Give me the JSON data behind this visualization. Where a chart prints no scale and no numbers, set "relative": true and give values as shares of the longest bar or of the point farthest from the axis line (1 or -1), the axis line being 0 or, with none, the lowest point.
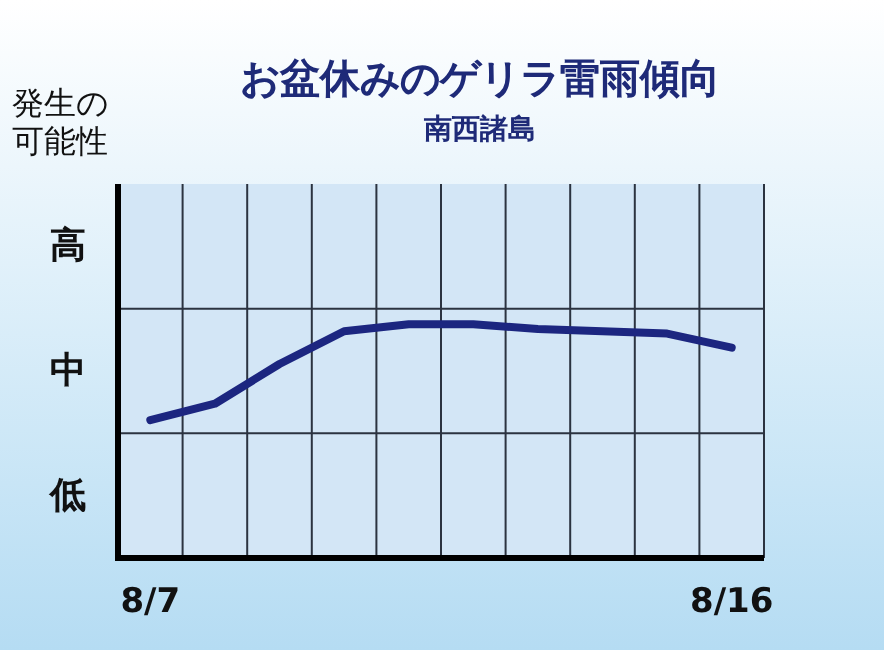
{
  "chart_data": {
    "type": "line",
    "title": "お盆休みのゲリラ雷雨傾向",
    "subtitle": "南西諸島",
    "relative": true,
    "categories": [
      "8/7",
      null,
      null,
      null,
      null,
      null,
      null,
      null,
      null,
      "8/16"
    ],
    "annotations": [
      "発生の可能性",
      "高",
      "中",
      "低"
    ],
    "series": [
      {
        "color": "#1c2680",
        "values": [
          0.59,
          0.66,
          0.83,
          0.97,
          1,
          1,
          0.98,
          0.97,
          0.96,
          0.9
        ]
      }
    ],
    "grid": true,
    "marker": "none",
    "line_style": "solid"
  }
}
